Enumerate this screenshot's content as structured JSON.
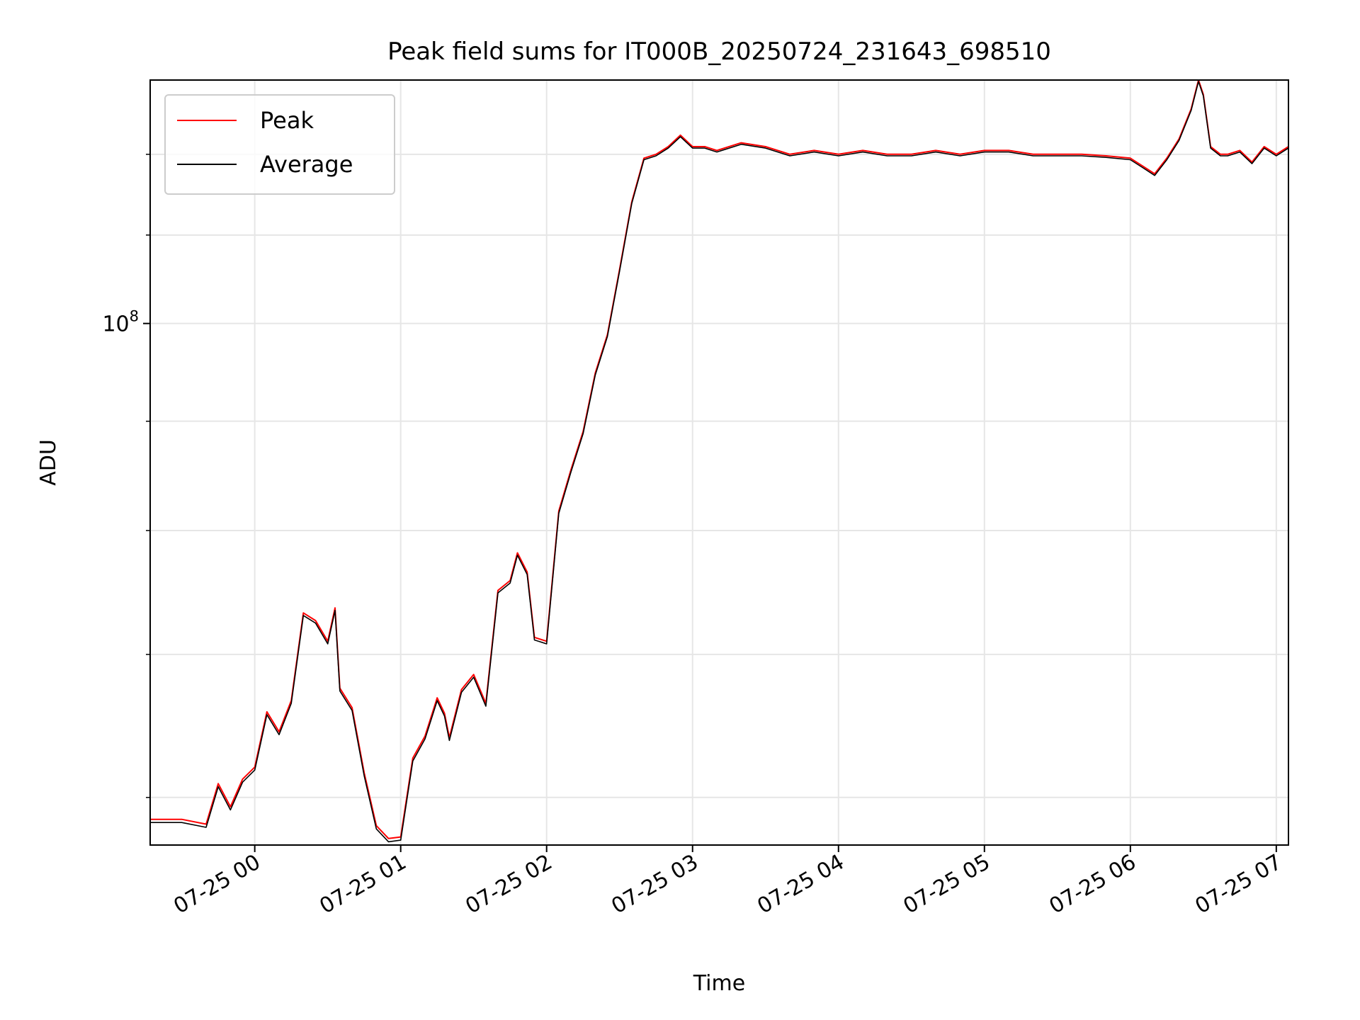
{
  "chart_data": {
    "type": "line",
    "title": "Peak field sums for IT000B_20250724_231643_698510",
    "xlabel": "Time",
    "ylabel": "ADU",
    "yscale": "log",
    "grid": true,
    "legend_position": "top-left",
    "xlim": [
      "07-24 23:17",
      "07-25 07:05"
    ],
    "ylim": [
      57000000.0,
      130000000.0
    ],
    "x_ticks": [
      "07-25 00",
      "07-25 01",
      "07-25 02",
      "07-25 03",
      "07-25 04",
      "07-25 05",
      "07-25 06",
      "07-25 07"
    ],
    "y_major_tick": {
      "value": 100000000.0,
      "label_base": "10",
      "label_exp": "8"
    },
    "y_minor_ticks": [
      60000000.0,
      70000000.0,
      80000000.0,
      90000000.0
    ],
    "x": [
      "07-24 23:17",
      "07-24 23:30",
      "07-24 23:40",
      "07-24 23:45",
      "07-24 23:50",
      "07-24 23:55",
      "07-25 00:00",
      "07-25 00:05",
      "07-25 00:10",
      "07-25 00:15",
      "07-25 00:20",
      "07-25 00:25",
      "07-25 00:30",
      "07-25 00:33",
      "07-25 00:35",
      "07-25 00:40",
      "07-25 00:45",
      "07-25 00:50",
      "07-25 00:55",
      "07-25 01:00",
      "07-25 01:05",
      "07-25 01:10",
      "07-25 01:15",
      "07-25 01:18",
      "07-25 01:20",
      "07-25 01:25",
      "07-25 01:30",
      "07-25 01:35",
      "07-25 01:40",
      "07-25 01:45",
      "07-25 01:48",
      "07-25 01:52",
      "07-25 01:55",
      "07-25 02:00",
      "07-25 02:05",
      "07-25 02:10",
      "07-25 02:15",
      "07-25 02:20",
      "07-25 02:25",
      "07-25 02:30",
      "07-25 02:35",
      "07-25 02:40",
      "07-25 02:45",
      "07-25 02:50",
      "07-25 02:55",
      "07-25 03:00",
      "07-25 03:05",
      "07-25 03:10",
      "07-25 03:20",
      "07-25 03:30",
      "07-25 03:40",
      "07-25 03:50",
      "07-25 04:00",
      "07-25 04:10",
      "07-25 04:20",
      "07-25 04:30",
      "07-25 04:40",
      "07-25 04:50",
      "07-25 05:00",
      "07-25 05:10",
      "07-25 05:20",
      "07-25 05:30",
      "07-25 05:40",
      "07-25 05:50",
      "07-25 06:00",
      "07-25 06:05",
      "07-25 06:10",
      "07-25 06:15",
      "07-25 06:20",
      "07-25 06:25",
      "07-25 06:28",
      "07-25 06:30",
      "07-25 06:33",
      "07-25 06:37",
      "07-25 06:40",
      "07-25 06:45",
      "07-25 06:50",
      "07-25 06:55",
      "07-25 07:00",
      "07-25 07:05"
    ],
    "series": [
      {
        "name": "Peak",
        "color": "#ff0000",
        "values": [
          58600000,
          58600000,
          58300000,
          60900000,
          59400000,
          61200000,
          62000000,
          65800000,
          64400000,
          66600000,
          73200000,
          72600000,
          71000000,
          73600000,
          67500000,
          66100000,
          61600000,
          58200000,
          57400000,
          57500000,
          62600000,
          64100000,
          66800000,
          65700000,
          64000000,
          67400000,
          68500000,
          66400000,
          75000000,
          75800000,
          78100000,
          76500000,
          71300000,
          71000000,
          81700000,
          85400000,
          89000000,
          94800000,
          98800000,
          106000000,
          114000000,
          119500000,
          120000000,
          121000000,
          122500000,
          121000000,
          121000000,
          120500000,
          121500000,
          121000000,
          120000000,
          120500000,
          120000000,
          120500000,
          120000000,
          120000000,
          120500000,
          120000000,
          120500000,
          120500000,
          120000000,
          120000000,
          120000000,
          119800000,
          119500000,
          118500000,
          117500000,
          119500000,
          122000000,
          126000000,
          130000000,
          128000000,
          121000000,
          120000000,
          120000000,
          120500000,
          119000000,
          121000000,
          120000000,
          121000000
        ]
      },
      {
        "name": "Average",
        "color": "#000000",
        "values": [
          58400000,
          58400000,
          58100000,
          60700000,
          59200000,
          61000000,
          61800000,
          65600000,
          64200000,
          66400000,
          73000000,
          72400000,
          70800000,
          73400000,
          67300000,
          65900000,
          61400000,
          58000000,
          57200000,
          57300000,
          62400000,
          63900000,
          66600000,
          65500000,
          63800000,
          67200000,
          68300000,
          66200000,
          74800000,
          75600000,
          77900000,
          76300000,
          71100000,
          70800000,
          81500000,
          85200000,
          88800000,
          94600000,
          98600000,
          105800000,
          113800000,
          119300000,
          119800000,
          120800000,
          122300000,
          120800000,
          120800000,
          120300000,
          121300000,
          120800000,
          119800000,
          120300000,
          119800000,
          120300000,
          119800000,
          119800000,
          120300000,
          119800000,
          120300000,
          120300000,
          119800000,
          119800000,
          119800000,
          119600000,
          119300000,
          118300000,
          117300000,
          119300000,
          121800000,
          125800000,
          129800000,
          127800000,
          120800000,
          119800000,
          119800000,
          120300000,
          118800000,
          120800000,
          119800000,
          120800000
        ]
      }
    ]
  }
}
